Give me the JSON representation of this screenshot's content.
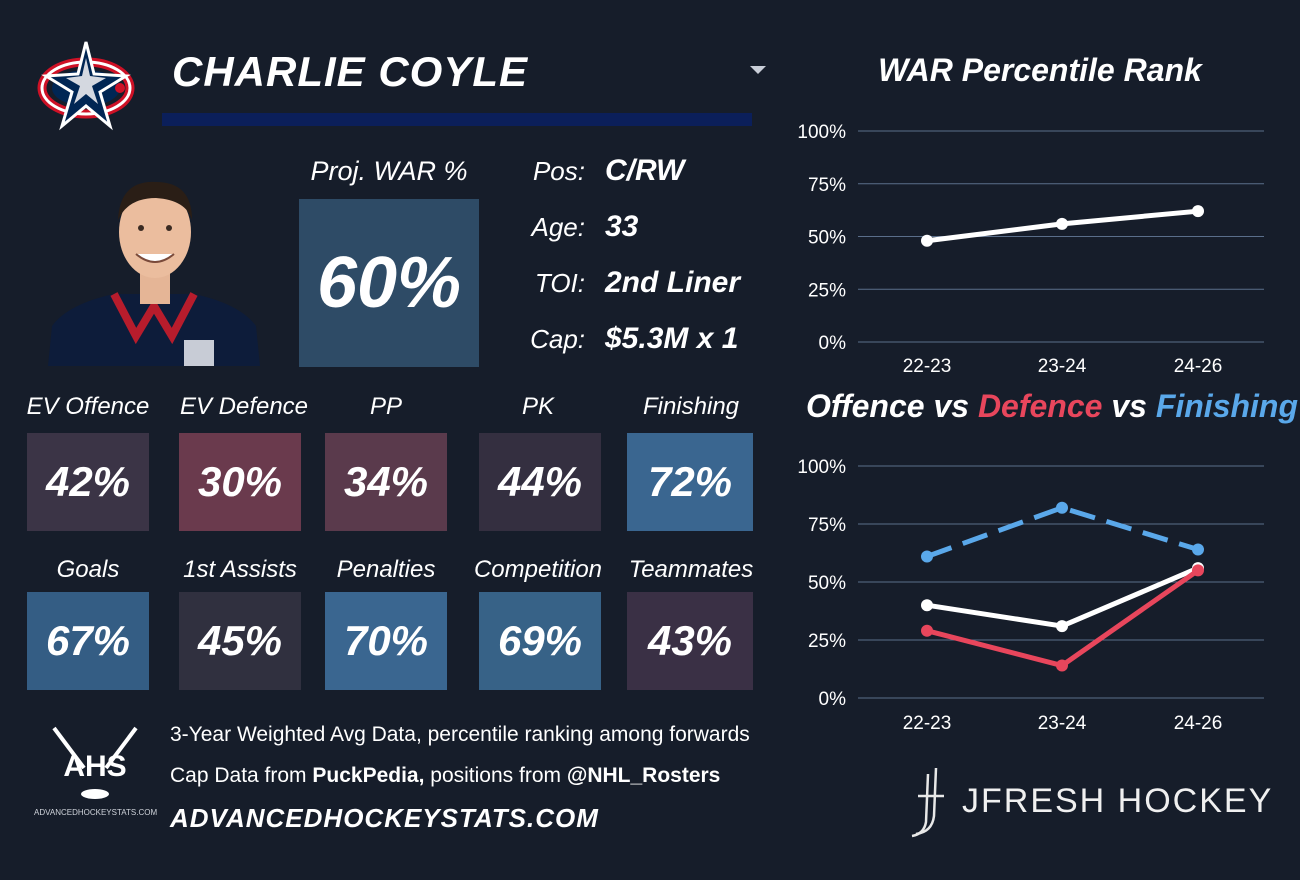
{
  "player": {
    "name": "CHARLIE COYLE",
    "proj_war_label": "Proj. WAR %",
    "proj_war_value": "60%"
  },
  "info": [
    {
      "label": "Pos:",
      "value": "C/RW"
    },
    {
      "label": "Age:",
      "value": "33"
    },
    {
      "label": "TOI:",
      "value": "2nd Liner"
    },
    {
      "label": "Cap:",
      "value": "$5.3M x 1"
    }
  ],
  "stats_row1": [
    {
      "label": "EV Offence",
      "value": "42%",
      "color": "#3b3446"
    },
    {
      "label": "EV Defence",
      "value": "30%",
      "color": "#6a3a4d"
    },
    {
      "label": "PP",
      "value": "34%",
      "color": "#5a3a4c"
    },
    {
      "label": "PK",
      "value": "44%",
      "color": "#342f40"
    },
    {
      "label": "Finishing",
      "value": "72%",
      "color": "#3a6690"
    }
  ],
  "stats_row2": [
    {
      "label": "Goals",
      "value": "67%",
      "color": "#345d84"
    },
    {
      "label": "1st Assists",
      "value": "45%",
      "color": "#30303f"
    },
    {
      "label": "Penalties",
      "value": "70%",
      "color": "#3a6690"
    },
    {
      "label": "Competition",
      "value": "69%",
      "color": "#376287"
    },
    {
      "label": "Teammates",
      "value": "43%",
      "color": "#3a3045"
    }
  ],
  "footer": {
    "line1": "3-Year Weighted Avg Data, percentile ranking among forwards",
    "line2_a": "Cap Data from ",
    "line2_b": "PuckPedia,",
    "line2_c": " positions from ",
    "line2_d": "@NHL_Rosters",
    "site": "ADVANCEDHOCKEYSTATS.COM",
    "ahs_logo": "AHS",
    "ahs_sub": "ADVANCEDHOCKEYSTATS.COM",
    "brand": "JFRESH HOCKEY"
  },
  "chart_titles": {
    "war": "WAR Percentile Rank",
    "part1": "Offence",
    "part2": " vs ",
    "part3": "Defence",
    "part4": " vs ",
    "part5": "Finishing"
  },
  "colors": {
    "offence": "#ffffff",
    "defence": "#e8465c",
    "finishing": "#5aa8ea",
    "grid": "#5a6e8a"
  },
  "chart_data": [
    {
      "type": "line",
      "title": "WAR Percentile Rank",
      "categories": [
        "22-23",
        "23-24",
        "24-26"
      ],
      "yticks": [
        "0%",
        "25%",
        "50%",
        "75%",
        "100%"
      ],
      "ylim": [
        0,
        100
      ],
      "series": [
        {
          "values": [
            48,
            56,
            62
          ],
          "color": "#ffffff",
          "dash": false
        }
      ]
    },
    {
      "type": "line",
      "title": "Offence vs Defence vs Finishing",
      "categories": [
        "22-23",
        "23-24",
        "24-26"
      ],
      "yticks": [
        "0%",
        "25%",
        "50%",
        "75%",
        "100%"
      ],
      "ylim": [
        0,
        100
      ],
      "series": [
        {
          "name": "Finishing",
          "values": [
            61,
            82,
            64
          ],
          "color": "#5aa8ea",
          "dash": true
        },
        {
          "name": "Offence",
          "values": [
            40,
            31,
            56
          ],
          "color": "#ffffff",
          "dash": false
        },
        {
          "name": "Defence",
          "values": [
            29,
            14,
            55
          ],
          "color": "#e8465c",
          "dash": false
        }
      ]
    }
  ]
}
